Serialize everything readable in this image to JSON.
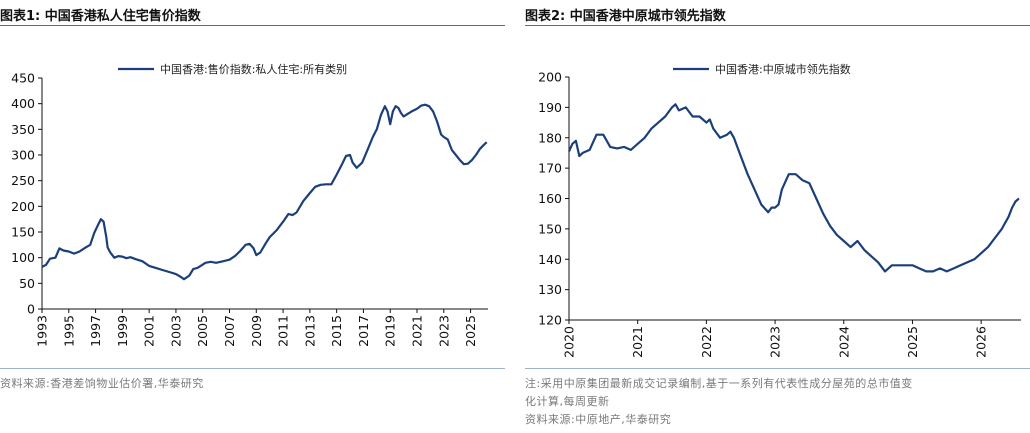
{
  "panels": [
    {
      "title": "图表1:  中国香港私人住宅售价指数",
      "source": "资料来源:香港差饷物业估价署,华泰研究"
    },
    {
      "title": "图表2:  中国香港中原城市领先指数",
      "note_line1": "注:采用中原集团最新成交记录编制,基于一系列有代表性成分屋苑的总市值变",
      "note_line2": "化计算,每周更新",
      "source": "资料来源:中原地产,华泰研究"
    }
  ],
  "colors": {
    "series": "#1b3f7a",
    "rule": "#4a6fa5"
  },
  "chart_data": [
    {
      "type": "line",
      "title": "",
      "xlabel": "",
      "ylabel": "",
      "ylim": [
        0,
        450
      ],
      "y_ticks": [
        0,
        50,
        100,
        150,
        200,
        250,
        300,
        350,
        400,
        450
      ],
      "x_ticks": [
        "1993",
        "1995",
        "1997",
        "1999",
        "2001",
        "2003",
        "2005",
        "2007",
        "2009",
        "2011",
        "2013",
        "2015",
        "2017",
        "2019",
        "2021",
        "2023",
        "2025"
      ],
      "xlim": [
        1993,
        2026.3
      ],
      "legend": "top-center",
      "grid": false,
      "series": [
        {
          "name": "中国香港:售价指数:私人住宅:所有类别",
          "x": [
            1993.0,
            1993.3,
            1993.6,
            1994.0,
            1994.3,
            1994.6,
            1995.0,
            1995.4,
            1995.8,
            1996.2,
            1996.6,
            1996.9,
            1997.2,
            1997.4,
            1997.6,
            1997.8,
            1997.9,
            1998.1,
            1998.4,
            1998.7,
            1999.0,
            1999.3,
            1999.6,
            2000.0,
            2000.5,
            2001.0,
            2001.5,
            2002.0,
            2002.5,
            2003.0,
            2003.4,
            2003.6,
            2004.0,
            2004.3,
            2004.6,
            2004.9,
            2005.2,
            2005.6,
            2006.0,
            2006.5,
            2007.0,
            2007.4,
            2007.8,
            2008.2,
            2008.5,
            2008.8,
            2009.0,
            2009.3,
            2009.7,
            2010.0,
            2010.5,
            2011.0,
            2011.4,
            2011.7,
            2012.0,
            2012.5,
            2013.0,
            2013.4,
            2013.8,
            2014.2,
            2014.6,
            2015.0,
            2015.4,
            2015.7,
            2016.0,
            2016.2,
            2016.5,
            2016.9,
            2017.3,
            2017.7,
            2018.0,
            2018.3,
            2018.6,
            2018.8,
            2019.0,
            2019.2,
            2019.4,
            2019.6,
            2019.8,
            2020.0,
            2020.3,
            2020.6,
            2021.0,
            2021.3,
            2021.6,
            2021.9,
            2022.2,
            2022.5,
            2022.8,
            2023.0,
            2023.3,
            2023.6,
            2023.9,
            2024.2,
            2024.5,
            2024.8,
            2025.1,
            2025.4,
            2025.7,
            2026.0,
            2026.2
          ],
          "y": [
            82,
            86,
            98,
            100,
            118,
            114,
            112,
            108,
            112,
            119,
            125,
            148,
            165,
            175,
            170,
            140,
            120,
            110,
            100,
            103,
            102,
            99,
            101,
            97,
            93,
            84,
            80,
            76,
            72,
            68,
            62,
            58,
            65,
            78,
            80,
            85,
            90,
            92,
            90,
            93,
            96,
            103,
            113,
            125,
            127,
            118,
            105,
            110,
            128,
            140,
            153,
            170,
            185,
            183,
            188,
            210,
            226,
            238,
            242,
            243,
            243,
            262,
            282,
            298,
            300,
            285,
            275,
            285,
            310,
            335,
            350,
            378,
            395,
            385,
            360,
            385,
            395,
            392,
            382,
            375,
            380,
            385,
            390,
            396,
            398,
            395,
            385,
            365,
            340,
            335,
            330,
            310,
            300,
            290,
            282,
            283,
            290,
            300,
            312,
            320,
            325
          ]
        }
      ]
    },
    {
      "type": "line",
      "title": "",
      "xlabel": "",
      "ylabel": "",
      "ylim": [
        120,
        200
      ],
      "y_ticks": [
        120,
        130,
        140,
        150,
        160,
        170,
        180,
        190,
        200
      ],
      "x_ticks": [
        "2020",
        "2021",
        "2022",
        "2023",
        "2024",
        "2025",
        "2026"
      ],
      "xlim": [
        2020,
        2026.58
      ],
      "legend": "top-center",
      "grid": false,
      "series": [
        {
          "name": "中国香港:中原城市领先指数",
          "x": [
            2020.0,
            2020.05,
            2020.1,
            2020.15,
            2020.2,
            2020.3,
            2020.4,
            2020.5,
            2020.6,
            2020.7,
            2020.8,
            2020.9,
            2021.0,
            2021.1,
            2021.2,
            2021.3,
            2021.4,
            2021.5,
            2021.55,
            2021.6,
            2021.7,
            2021.8,
            2021.9,
            2022.0,
            2022.05,
            2022.1,
            2022.2,
            2022.3,
            2022.35,
            2022.4,
            2022.5,
            2022.6,
            2022.7,
            2022.8,
            2022.9,
            2022.95,
            2023.0,
            2023.05,
            2023.1,
            2023.2,
            2023.3,
            2023.4,
            2023.5,
            2023.6,
            2023.7,
            2023.8,
            2023.9,
            2024.0,
            2024.1,
            2024.2,
            2024.3,
            2024.4,
            2024.5,
            2024.6,
            2024.7,
            2024.8,
            2024.9,
            2025.0,
            2025.1,
            2025.2,
            2025.3,
            2025.4,
            2025.5,
            2025.6,
            2025.7,
            2025.8,
            2025.9,
            2026.0,
            2026.1,
            2026.2,
            2026.3,
            2026.4,
            2026.45,
            2026.5,
            2026.55
          ],
          "y": [
            175.5,
            178,
            179,
            174,
            175,
            176,
            181,
            181,
            177,
            176.5,
            177,
            176,
            178,
            180,
            183,
            185,
            187,
            190,
            191,
            189,
            190,
            187,
            187,
            185,
            186,
            183,
            180,
            181,
            182,
            180,
            174,
            168,
            163,
            158,
            155.5,
            157,
            157,
            158,
            163,
            168,
            168,
            166,
            165,
            160,
            155,
            151,
            148,
            146,
            144,
            146,
            143,
            141,
            139,
            136,
            138,
            138,
            138,
            138,
            137,
            136,
            136,
            137,
            136,
            137,
            138,
            139,
            140,
            142,
            144,
            147,
            150,
            154,
            157,
            159,
            160
          ]
        }
      ]
    }
  ]
}
